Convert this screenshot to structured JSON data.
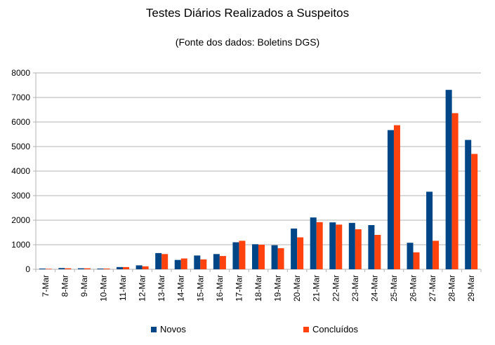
{
  "chart_data": {
    "type": "bar",
    "title": "Testes Diários Realizados a Suspeitos",
    "subtitle": "(Fonte dos dados: Boletins DGS)",
    "xlabel": "",
    "ylabel": "",
    "ylim": [
      0,
      8000
    ],
    "yticks": [
      0,
      1000,
      2000,
      3000,
      4000,
      5000,
      6000,
      7000,
      8000
    ],
    "grid": true,
    "legend_position": "bottom",
    "categories": [
      "7-Mar",
      "8-Mar",
      "9-Mar",
      "10-Mar",
      "11-Mar",
      "12-Mar",
      "13-Mar",
      "14-Mar",
      "15-Mar",
      "16-Mar",
      "17-Mar",
      "18-Mar",
      "19-Mar",
      "20-Mar",
      "21-Mar",
      "22-Mar",
      "23-Mar",
      "24-Mar",
      "25-Mar",
      "26-Mar",
      "27-Mar",
      "28-Mar",
      "29-Mar"
    ],
    "series": [
      {
        "name": "Novos",
        "color": "#004586",
        "values": [
          30,
          50,
          40,
          30,
          90,
          160,
          660,
          380,
          560,
          620,
          1100,
          1020,
          980,
          1660,
          2110,
          1910,
          1890,
          1800,
          5670,
          1080,
          3160,
          7310,
          5270
        ]
      },
      {
        "name": "Concluídos",
        "color": "#ff420e",
        "values": [
          20,
          40,
          40,
          30,
          90,
          120,
          620,
          440,
          400,
          540,
          1160,
          1000,
          860,
          1300,
          1920,
          1820,
          1630,
          1400,
          5870,
          690,
          1160,
          6360,
          4700
        ]
      }
    ]
  }
}
